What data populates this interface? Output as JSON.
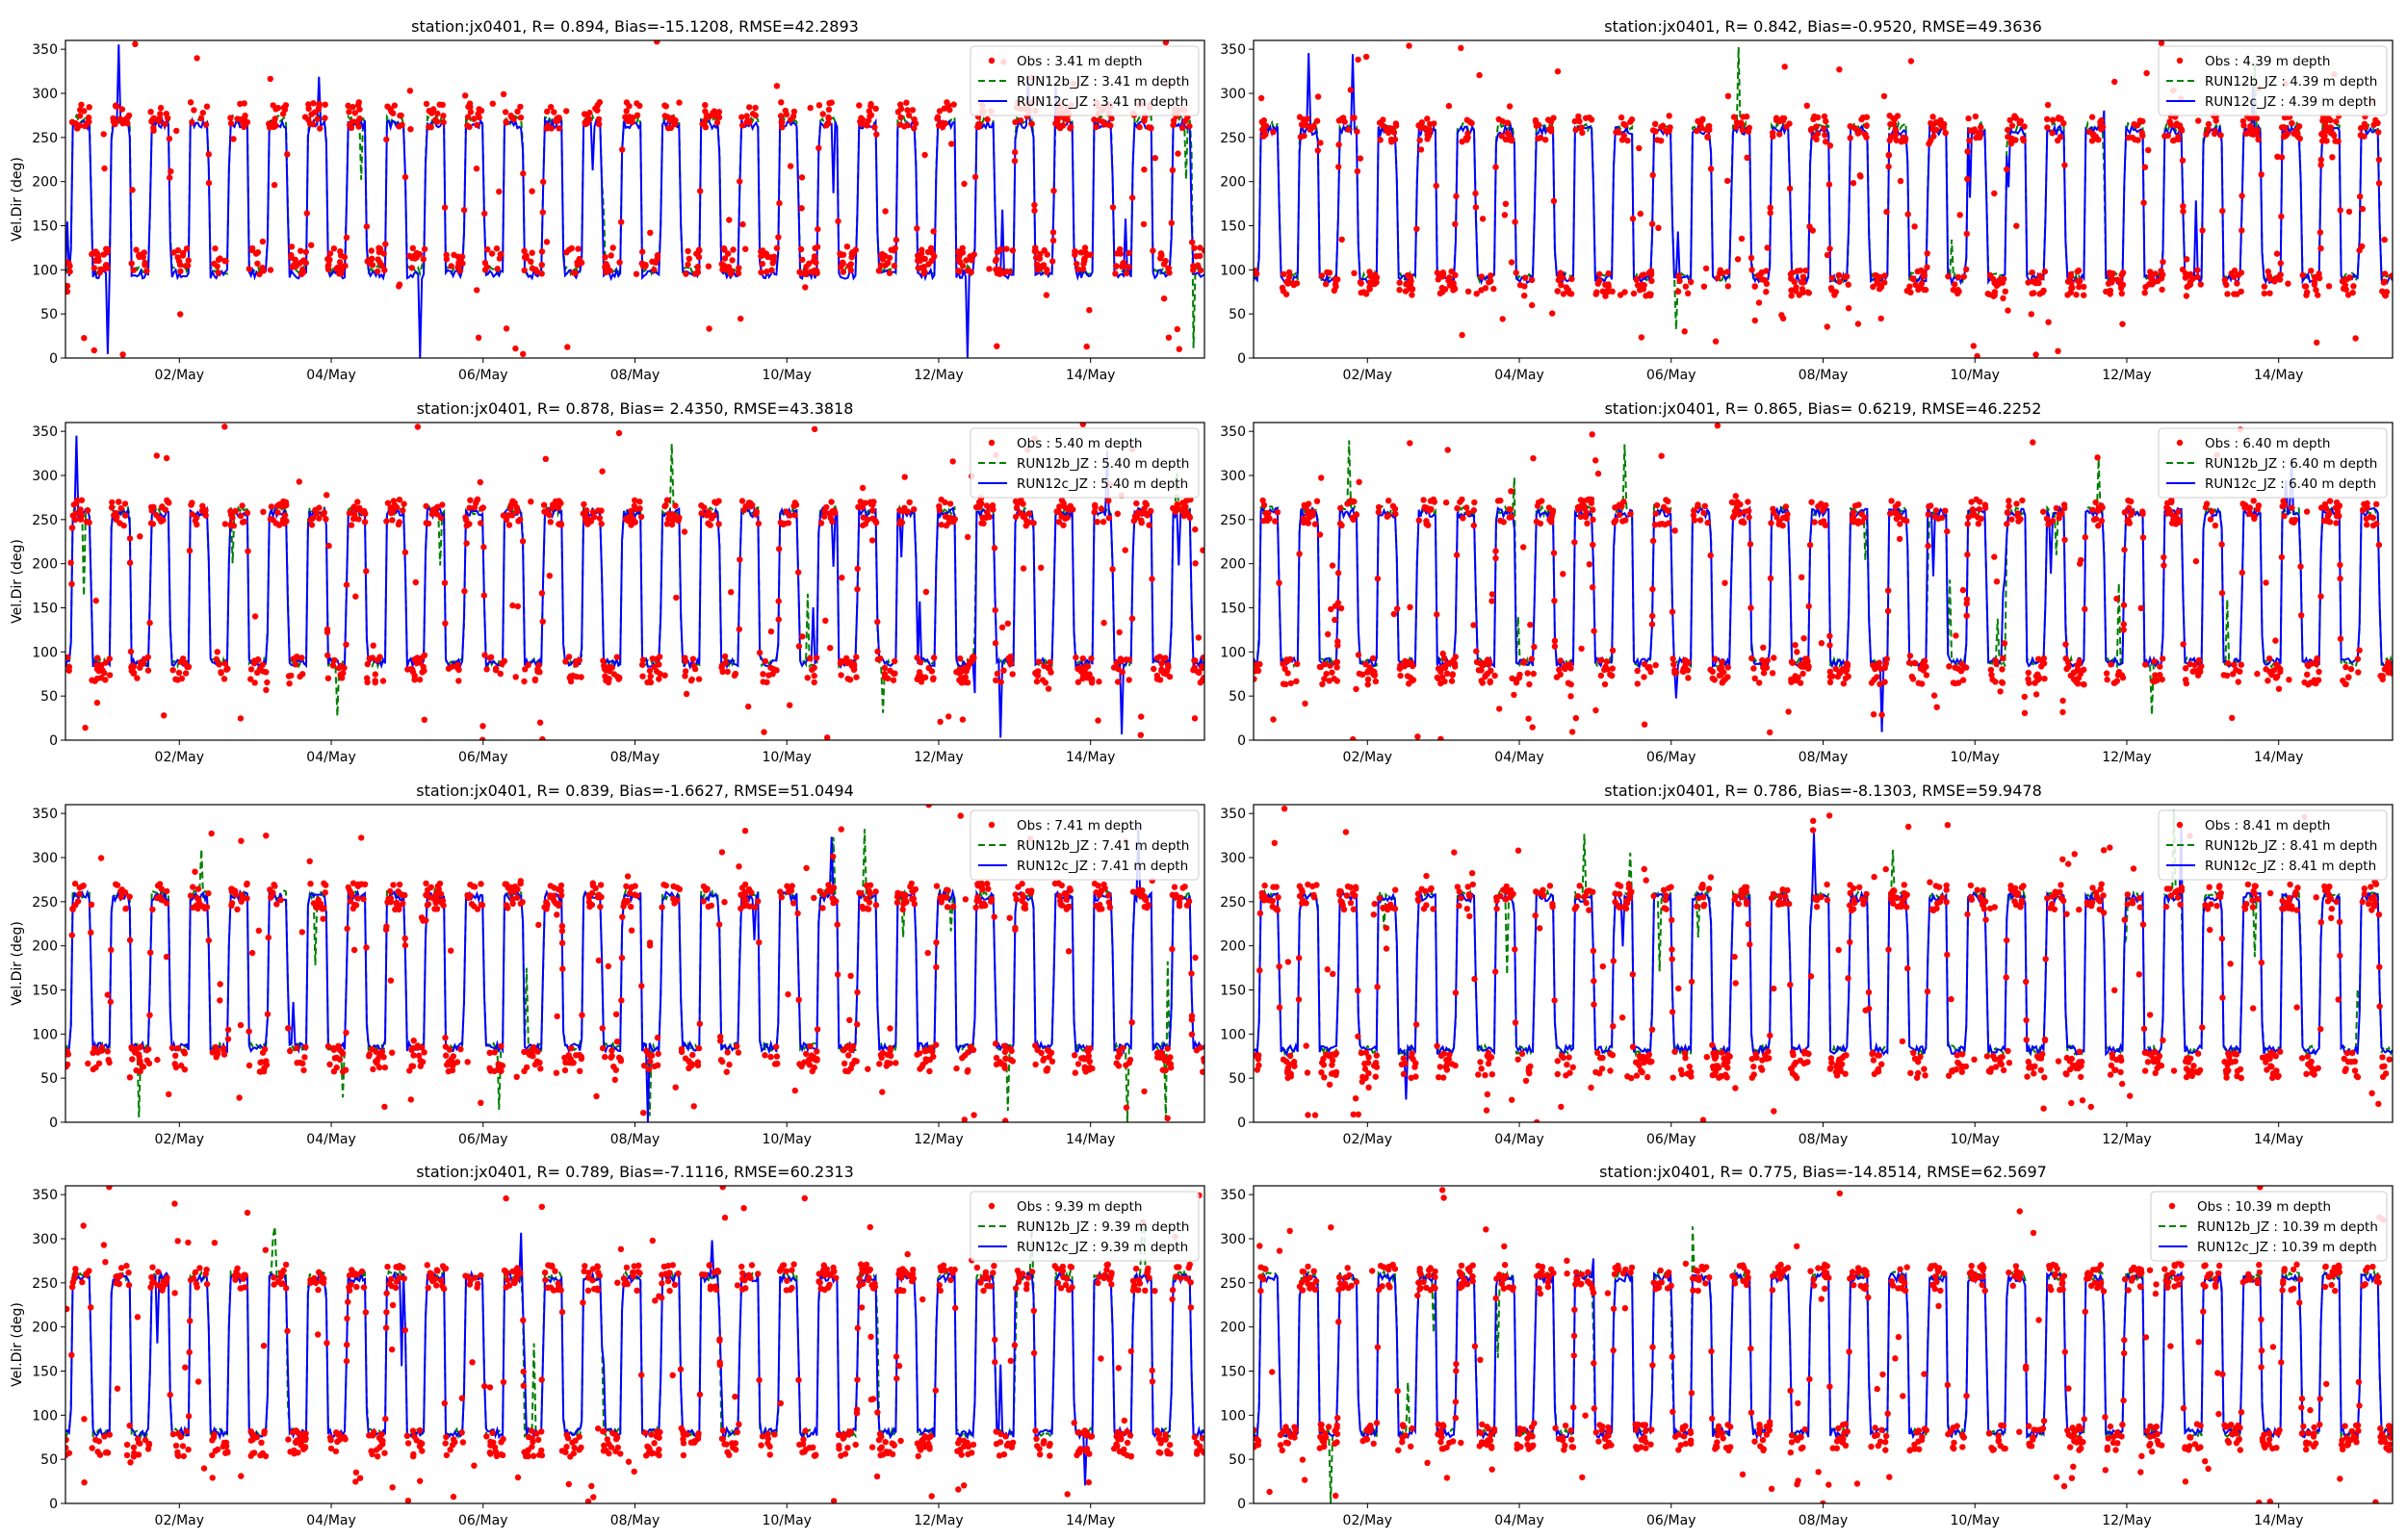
{
  "chart_data": [
    {
      "type": "line",
      "title": "station:jx0401, R= 0.894, Bias=-15.1208, RMSE=42.2893",
      "ylabel": "Vel.Dir (deg)",
      "xlim": [
        0,
        15
      ],
      "ylim": [
        0,
        360
      ],
      "yticks": [
        0,
        50,
        100,
        150,
        200,
        250,
        300,
        350
      ],
      "xticks": [
        {
          "x": 1.5,
          "label": "02/May"
        },
        {
          "x": 3.5,
          "label": "04/May"
        },
        {
          "x": 5.5,
          "label": "06/May"
        },
        {
          "x": 7.5,
          "label": "08/May"
        },
        {
          "x": 9.5,
          "label": "10/May"
        },
        {
          "x": 11.5,
          "label": "12/May"
        },
        {
          "x": 13.5,
          "label": "14/May"
        }
      ],
      "series": [
        {
          "name": "Obs : 3.41 m depth",
          "kind": "points",
          "color": "#ff0000",
          "high": 275,
          "low": 110
        },
        {
          "name": "RUN12b_JZ : 3.41 m depth",
          "kind": "dashed",
          "color": "#008000",
          "high": 270,
          "low": 100
        },
        {
          "name": "RUN12c_JZ : 3.41 m depth",
          "kind": "solid",
          "color": "#0000ff",
          "high": 265,
          "low": 95
        }
      ]
    },
    {
      "type": "line",
      "title": "station:jx0401, R= 0.842, Bias=-0.9520, RMSE=49.3636",
      "ylabel": "",
      "xlim": [
        0,
        15
      ],
      "ylim": [
        0,
        360
      ],
      "yticks": [
        0,
        50,
        100,
        150,
        200,
        250,
        300,
        350
      ],
      "xticks": [
        {
          "x": 1.5,
          "label": "02/May"
        },
        {
          "x": 3.5,
          "label": "04/May"
        },
        {
          "x": 5.5,
          "label": "06/May"
        },
        {
          "x": 7.5,
          "label": "08/May"
        },
        {
          "x": 9.5,
          "label": "10/May"
        },
        {
          "x": 11.5,
          "label": "12/May"
        },
        {
          "x": 13.5,
          "label": "14/May"
        }
      ],
      "series": [
        {
          "name": "Obs : 4.39 m depth",
          "kind": "points",
          "color": "#ff0000",
          "high": 260,
          "low": 85
        },
        {
          "name": "RUN12b_JZ : 4.39 m depth",
          "kind": "dashed",
          "color": "#008000",
          "high": 262,
          "low": 92
        },
        {
          "name": "RUN12c_JZ : 4.39 m depth",
          "kind": "solid",
          "color": "#0000ff",
          "high": 258,
          "low": 90
        }
      ]
    },
    {
      "type": "line",
      "title": "station:jx0401, R= 0.878, Bias= 2.4350, RMSE=43.3818",
      "ylabel": "Vel.Dir (deg)",
      "xlim": [
        0,
        15
      ],
      "ylim": [
        0,
        360
      ],
      "yticks": [
        0,
        50,
        100,
        150,
        200,
        250,
        300,
        350
      ],
      "xticks": [
        {
          "x": 1.5,
          "label": "02/May"
        },
        {
          "x": 3.5,
          "label": "04/May"
        },
        {
          "x": 5.5,
          "label": "06/May"
        },
        {
          "x": 7.5,
          "label": "08/May"
        },
        {
          "x": 9.5,
          "label": "10/May"
        },
        {
          "x": 11.5,
          "label": "12/May"
        },
        {
          "x": 13.5,
          "label": "14/May"
        }
      ],
      "series": [
        {
          "name": "Obs : 5.40 m depth",
          "kind": "points",
          "color": "#ff0000",
          "high": 258,
          "low": 80
        },
        {
          "name": "RUN12b_JZ : 5.40 m depth",
          "kind": "dashed",
          "color": "#008000",
          "high": 260,
          "low": 88
        },
        {
          "name": "RUN12c_JZ : 5.40 m depth",
          "kind": "solid",
          "color": "#0000ff",
          "high": 258,
          "low": 88
        }
      ]
    },
    {
      "type": "line",
      "title": "station:jx0401, R= 0.865, Bias= 0.6219, RMSE=46.2252",
      "ylabel": "",
      "xlim": [
        0,
        15
      ],
      "ylim": [
        0,
        360
      ],
      "yticks": [
        0,
        50,
        100,
        150,
        200,
        250,
        300,
        350
      ],
      "xticks": [
        {
          "x": 1.5,
          "label": "02/May"
        },
        {
          "x": 3.5,
          "label": "04/May"
        },
        {
          "x": 5.5,
          "label": "06/May"
        },
        {
          "x": 7.5,
          "label": "08/May"
        },
        {
          "x": 9.5,
          "label": "10/May"
        },
        {
          "x": 11.5,
          "label": "12/May"
        },
        {
          "x": 13.5,
          "label": "14/May"
        }
      ],
      "series": [
        {
          "name": "Obs : 6.40 m depth",
          "kind": "points",
          "color": "#ff0000",
          "high": 258,
          "low": 78
        },
        {
          "name": "RUN12b_JZ : 6.40 m depth",
          "kind": "dashed",
          "color": "#008000",
          "high": 260,
          "low": 88
        },
        {
          "name": "RUN12c_JZ : 6.40 m depth",
          "kind": "solid",
          "color": "#0000ff",
          "high": 258,
          "low": 88
        }
      ]
    },
    {
      "type": "line",
      "title": "station:jx0401, R= 0.839, Bias=-1.6627, RMSE=51.0494",
      "ylabel": "Vel.Dir (deg)",
      "xlim": [
        0,
        15
      ],
      "ylim": [
        0,
        360
      ],
      "yticks": [
        0,
        50,
        100,
        150,
        200,
        250,
        300,
        350
      ],
      "xticks": [
        {
          "x": 1.5,
          "label": "02/May"
        },
        {
          "x": 3.5,
          "label": "04/May"
        },
        {
          "x": 5.5,
          "label": "06/May"
        },
        {
          "x": 7.5,
          "label": "08/May"
        },
        {
          "x": 9.5,
          "label": "10/May"
        },
        {
          "x": 11.5,
          "label": "12/May"
        },
        {
          "x": 13.5,
          "label": "14/May"
        }
      ],
      "series": [
        {
          "name": "Obs : 7.41 m depth",
          "kind": "points",
          "color": "#ff0000",
          "high": 256,
          "low": 72
        },
        {
          "name": "RUN12b_JZ : 7.41 m depth",
          "kind": "dashed",
          "color": "#008000",
          "high": 258,
          "low": 85
        },
        {
          "name": "RUN12c_JZ : 7.41 m depth",
          "kind": "solid",
          "color": "#0000ff",
          "high": 256,
          "low": 85
        }
      ]
    },
    {
      "type": "line",
      "title": "station:jx0401, R= 0.786, Bias=-8.1303, RMSE=59.9478",
      "ylabel": "",
      "xlim": [
        0,
        15
      ],
      "ylim": [
        0,
        360
      ],
      "yticks": [
        0,
        50,
        100,
        150,
        200,
        250,
        300,
        350
      ],
      "xticks": [
        {
          "x": 1.5,
          "label": "02/May"
        },
        {
          "x": 3.5,
          "label": "04/May"
        },
        {
          "x": 5.5,
          "label": "06/May"
        },
        {
          "x": 7.5,
          "label": "08/May"
        },
        {
          "x": 9.5,
          "label": "10/May"
        },
        {
          "x": 11.5,
          "label": "12/May"
        },
        {
          "x": 13.5,
          "label": "14/May"
        }
      ],
      "series": [
        {
          "name": "Obs : 8.41 m depth",
          "kind": "points",
          "color": "#ff0000",
          "high": 255,
          "low": 65
        },
        {
          "name": "RUN12b_JZ : 8.41 m depth",
          "kind": "dashed",
          "color": "#008000",
          "high": 257,
          "low": 82
        },
        {
          "name": "RUN12c_JZ : 8.41 m depth",
          "kind": "solid",
          "color": "#0000ff",
          "high": 255,
          "low": 82
        }
      ]
    },
    {
      "type": "line",
      "title": "station:jx0401, R= 0.789, Bias=-7.1116, RMSE=60.2313",
      "ylabel": "Vel.Dir (deg)",
      "xlim": [
        0,
        15
      ],
      "ylim": [
        0,
        360
      ],
      "yticks": [
        0,
        50,
        100,
        150,
        200,
        250,
        300,
        350
      ],
      "xticks": [
        {
          "x": 1.5,
          "label": "02/May"
        },
        {
          "x": 3.5,
          "label": "04/May"
        },
        {
          "x": 5.5,
          "label": "06/May"
        },
        {
          "x": 7.5,
          "label": "08/May"
        },
        {
          "x": 9.5,
          "label": "10/May"
        },
        {
          "x": 11.5,
          "label": "12/May"
        },
        {
          "x": 13.5,
          "label": "14/May"
        }
      ],
      "series": [
        {
          "name": "Obs : 9.39 m depth",
          "kind": "points",
          "color": "#ff0000",
          "high": 256,
          "low": 68
        },
        {
          "name": "RUN12b_JZ : 9.39 m depth",
          "kind": "dashed",
          "color": "#008000",
          "high": 258,
          "low": 80
        },
        {
          "name": "RUN12c_JZ : 9.39 m depth",
          "kind": "solid",
          "color": "#0000ff",
          "high": 256,
          "low": 80
        }
      ]
    },
    {
      "type": "line",
      "title": "station:jx0401, R= 0.775, Bias=-14.8514, RMSE=62.5697",
      "ylabel": "",
      "xlim": [
        0,
        15
      ],
      "ylim": [
        0,
        360
      ],
      "yticks": [
        0,
        50,
        100,
        150,
        200,
        250,
        300,
        350
      ],
      "xticks": [
        {
          "x": 1.5,
          "label": "02/May"
        },
        {
          "x": 3.5,
          "label": "04/May"
        },
        {
          "x": 5.5,
          "label": "06/May"
        },
        {
          "x": 7.5,
          "label": "08/May"
        },
        {
          "x": 9.5,
          "label": "10/May"
        },
        {
          "x": 11.5,
          "label": "12/May"
        },
        {
          "x": 13.5,
          "label": "14/May"
        }
      ],
      "series": [
        {
          "name": "Obs : 10.39 m depth",
          "kind": "points",
          "color": "#ff0000",
          "high": 256,
          "low": 75
        },
        {
          "name": "RUN12b_JZ : 10.39 m depth",
          "kind": "dashed",
          "color": "#008000",
          "high": 258,
          "low": 80
        },
        {
          "name": "RUN12c_JZ : 10.39 m depth",
          "kind": "solid",
          "color": "#0000ff",
          "high": 256,
          "low": 80
        }
      ]
    }
  ]
}
